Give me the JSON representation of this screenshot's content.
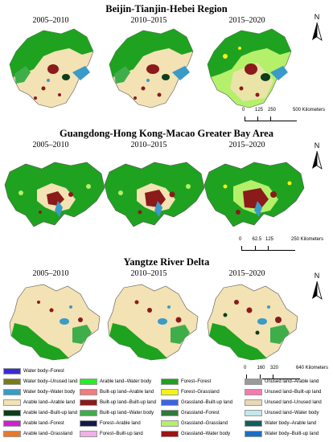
{
  "regions": [
    {
      "title": "Beijin-Tianjin-Hebei Region",
      "periods": [
        "2005–2010",
        "2010–2015",
        "2015–2020"
      ],
      "north": "N",
      "scale_labels": [
        "0",
        "125",
        "250",
        "500 Kilometers"
      ],
      "scale_values": [
        0,
        125,
        250,
        500
      ]
    },
    {
      "title": "Guangdong-Hong Kong-Macao Greater Bay Area",
      "periods": [
        "2005–2010",
        "2010–2015",
        "2015–2020"
      ],
      "north": "N",
      "scale_labels": [
        "0",
        "62.5",
        "125",
        "250 Kilometers"
      ],
      "scale_values": [
        0,
        62.5,
        125,
        250
      ]
    },
    {
      "title": "Yangtze River Delta",
      "periods": [
        "2005–2010",
        "2010–2015",
        "2015–2020"
      ],
      "north": "N",
      "scale_labels": [
        "0",
        "160",
        "320",
        "640 Kilometers"
      ],
      "scale_values": [
        0,
        160,
        320,
        640
      ]
    }
  ],
  "legend": [
    {
      "label": "Water body–Forest",
      "color": "#3b2bd6"
    },
    {
      "label": "Water body–Unused land",
      "color": "#7a7a1a"
    },
    {
      "label": "Water body–Water body",
      "color": "#3a9ac8"
    },
    {
      "label": "Arable land–Arable land",
      "color": "#f3e2b3"
    },
    {
      "label": "Arable land–Built-up land",
      "color": "#0d3d1a"
    },
    {
      "label": "Arable land–Forest",
      "color": "#d21fd2"
    },
    {
      "label": "Arable land–Grassland",
      "color": "#e8782a"
    },
    {
      "label": "Arable land–Water body",
      "color": "#22f022"
    },
    {
      "label": "Built-up land–Arable land",
      "color": "#ef7d7d"
    },
    {
      "label": "Built-up land–Built-up land",
      "color": "#8b1a1a"
    },
    {
      "label": "Built-up land–Water body",
      "color": "#3fae4a"
    },
    {
      "label": "Forest–Arable land",
      "color": "#101b4a"
    },
    {
      "label": "Forest–Built-up land",
      "color": "#f0b0e8"
    },
    {
      "label": "Forest–Forest",
      "color": "#1fa21f"
    },
    {
      "label": "Forest–Grassland",
      "color": "#f5f216"
    },
    {
      "label": "Grassland–Built-up land",
      "color": "#3a64e0"
    },
    {
      "label": "Grassland–Forest",
      "color": "#2d7a3a"
    },
    {
      "label": "Grassland–Grassland",
      "color": "#b4f06a"
    },
    {
      "label": "Grassland–Water body",
      "color": "#9e1212"
    },
    {
      "label": "Unused land–Arable land",
      "color": "#9a9a9a"
    },
    {
      "label": "Unused land–Built-up land",
      "color": "#f57ab0"
    },
    {
      "label": "Unused land–Unused land",
      "color": "#e6d9b5"
    },
    {
      "label": "Unused land–Water body",
      "color": "#c2e8ea"
    },
    {
      "label": "Water body–Arable land",
      "color": "#0f5f5f"
    },
    {
      "label": "Water body–Built-up land",
      "color": "#1a6fc4"
    }
  ]
}
